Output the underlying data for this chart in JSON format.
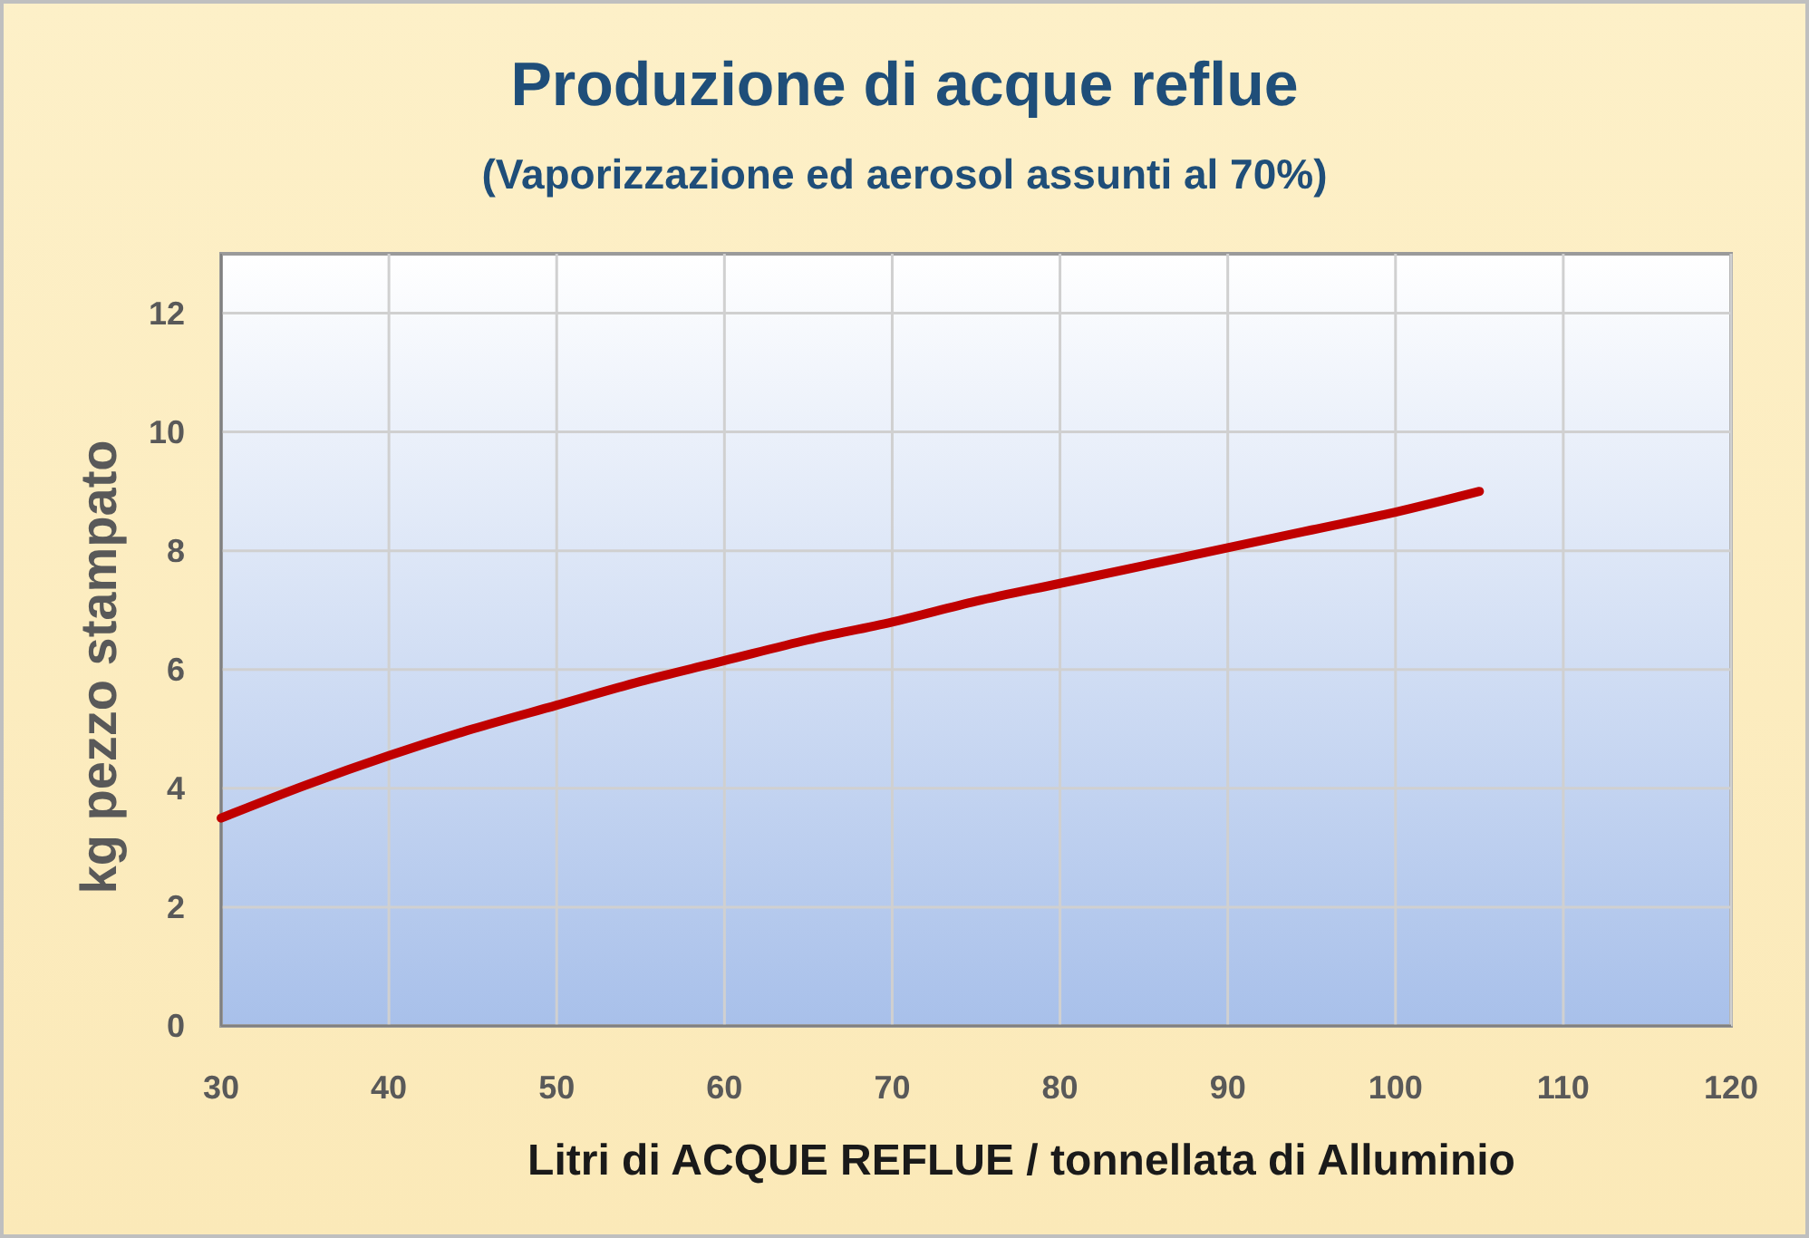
{
  "chart_data": {
    "type": "line",
    "title": "Produzione di acque reflue",
    "subtitle": "(Vaporizzazione ed aerosol assunti al 70%)",
    "xlabel": "Litri di ACQUE REFLUE / tonnellata di Alluminio",
    "ylabel": "kg  pezzo stampato",
    "x": [
      30,
      35,
      40,
      45,
      50,
      55,
      60,
      65,
      70,
      75,
      80,
      85,
      90,
      95,
      100,
      105
    ],
    "series": [
      {
        "color": "#c00000",
        "values": [
          3.5,
          4.05,
          4.55,
          5.0,
          5.4,
          5.8,
          6.15,
          6.5,
          6.8,
          7.15,
          7.45,
          7.75,
          8.05,
          8.35,
          8.65,
          9.0
        ]
      }
    ],
    "xlim": [
      30,
      120
    ],
    "xticks": [
      30,
      40,
      50,
      60,
      70,
      80,
      90,
      100,
      110,
      120
    ],
    "ylim": [
      0,
      13
    ],
    "yticks": [
      0,
      2,
      4,
      6,
      8,
      10,
      12
    ],
    "grid": true,
    "line_style": "solid"
  }
}
